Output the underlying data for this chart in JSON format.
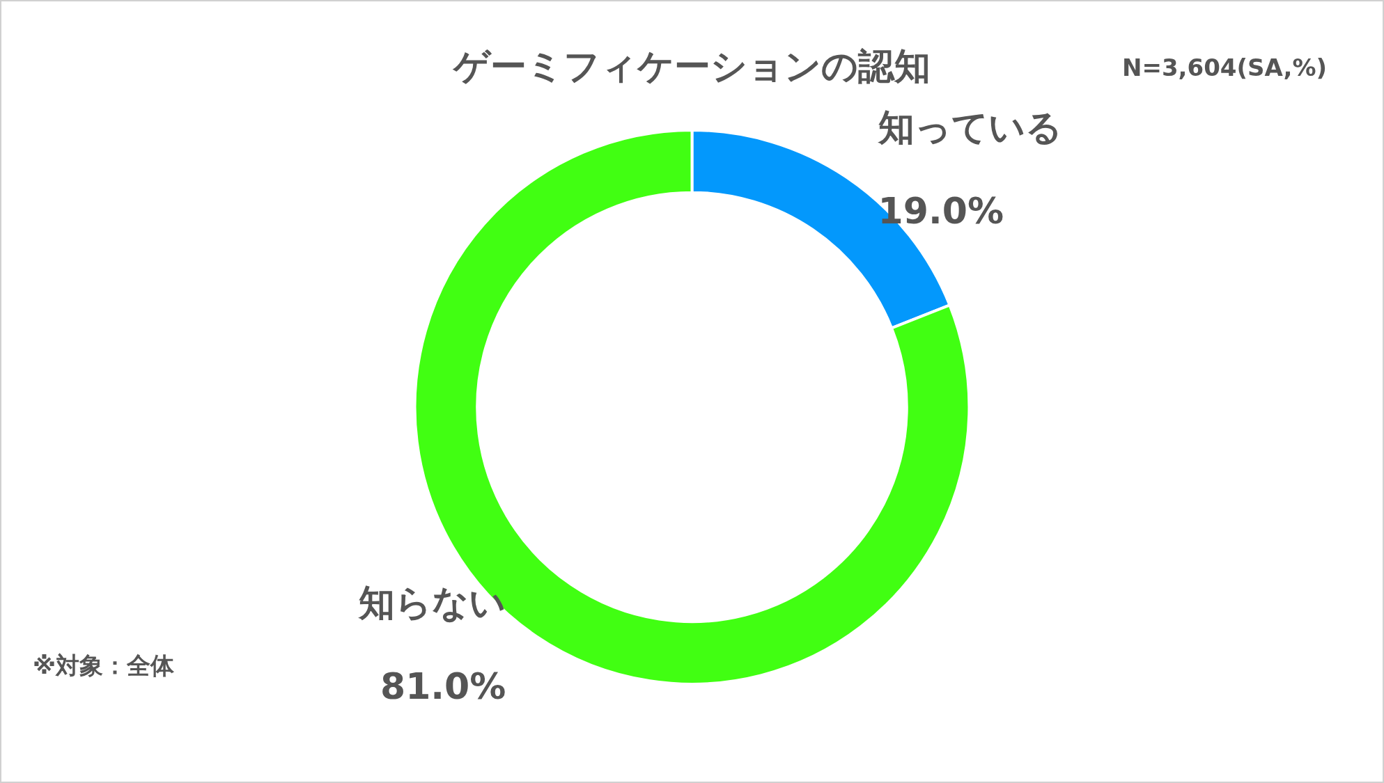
{
  "chart_data": {
    "type": "donut",
    "title": "ゲーミフィケーションの認知",
    "categories": [
      "知っている",
      "知らない"
    ],
    "values": [
      19.0,
      81.0
    ],
    "colors": [
      "#0398fc",
      "#41ff12"
    ],
    "value_labels": [
      "19.0%",
      "81.0%"
    ],
    "annotations": [
      "N=3,604(SA,%)",
      "※対象：全体"
    ],
    "legend": false
  }
}
